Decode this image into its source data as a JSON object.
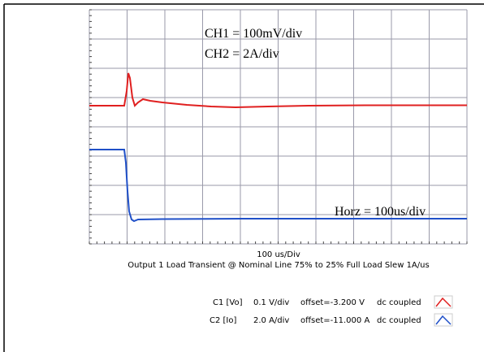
{
  "annotations": {
    "ch1": "CH1 = 100mV/div",
    "ch2": "CH2 = 2A/div",
    "horz": "Horz = 100us/div"
  },
  "timebase": "100 us/Div",
  "caption": "Output 1 Load Transient @ Nominal Line 75% to 25% Full Load Slew 1A/us",
  "legend": [
    {
      "channel": "C1 [Vo]",
      "scale": "0.1 V/div",
      "offset": "offset=-3.200 V",
      "coupling": "dc coupled"
    },
    {
      "channel": "C2 [Io]",
      "scale": "2.0 A/div",
      "offset": "offset=-11.000 A",
      "coupling": "dc coupled"
    }
  ]
}
